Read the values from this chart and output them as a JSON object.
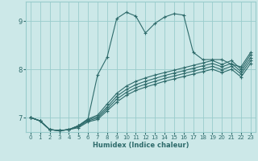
{
  "xlabel": "Humidex (Indice chaleur)",
  "background_color": "#cce8e8",
  "grid_color": "#99cccc",
  "line_color": "#2e6b6b",
  "xlim": [
    -0.5,
    23.5
  ],
  "ylim": [
    6.7,
    9.4
  ],
  "yticks": [
    7,
    8,
    9
  ],
  "xticks": [
    0,
    1,
    2,
    3,
    4,
    5,
    6,
    7,
    8,
    9,
    10,
    11,
    12,
    13,
    14,
    15,
    16,
    17,
    18,
    19,
    20,
    21,
    22,
    23
  ],
  "series": [
    [
      7.0,
      6.93,
      6.75,
      6.73,
      6.75,
      6.83,
      6.97,
      7.88,
      8.25,
      9.05,
      9.18,
      9.1,
      8.75,
      8.95,
      9.08,
      9.15,
      9.12,
      8.35,
      8.2,
      8.2,
      8.2,
      8.1,
      8.05,
      8.35
    ],
    [
      7.0,
      6.93,
      6.75,
      6.73,
      6.75,
      6.83,
      6.97,
      7.05,
      7.28,
      7.5,
      7.65,
      7.75,
      7.82,
      7.88,
      7.93,
      7.98,
      8.03,
      8.08,
      8.13,
      8.18,
      8.1,
      8.18,
      8.0,
      8.3
    ],
    [
      7.0,
      6.93,
      6.75,
      6.73,
      6.75,
      6.83,
      6.95,
      7.02,
      7.22,
      7.44,
      7.58,
      7.68,
      7.75,
      7.81,
      7.87,
      7.92,
      7.97,
      8.02,
      8.07,
      8.12,
      8.05,
      8.12,
      7.95,
      8.24
    ],
    [
      7.0,
      6.93,
      6.75,
      6.73,
      6.75,
      6.81,
      6.93,
      6.99,
      7.18,
      7.38,
      7.52,
      7.62,
      7.69,
      7.75,
      7.81,
      7.86,
      7.91,
      7.96,
      8.01,
      8.06,
      7.99,
      8.06,
      7.9,
      8.18
    ],
    [
      7.0,
      6.93,
      6.75,
      6.73,
      6.75,
      6.79,
      6.91,
      6.96,
      7.14,
      7.32,
      7.46,
      7.56,
      7.63,
      7.69,
      7.75,
      7.8,
      7.85,
      7.9,
      7.95,
      8.0,
      7.93,
      8.0,
      7.84,
      8.12
    ]
  ]
}
